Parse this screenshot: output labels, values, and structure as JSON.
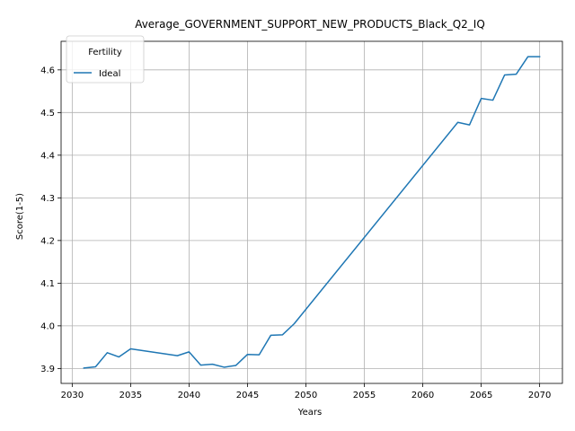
{
  "chart_data": {
    "type": "line",
    "title": "Average_GOVERNMENT_SUPPORT_NEW_PRODUCTS_Black_Q2_IQ",
    "xlabel": "Years",
    "ylabel": "Score(1-5)",
    "xlim": [
      2029.05,
      2071.95
    ],
    "ylim": [
      3.865,
      4.667
    ],
    "xticks": [
      2030,
      2035,
      2040,
      2045,
      2050,
      2055,
      2060,
      2065,
      2070
    ],
    "yticks": [
      3.9,
      4.0,
      4.1,
      4.2,
      4.3,
      4.4,
      4.5,
      4.6
    ],
    "grid": true,
    "legend": {
      "title": "Fertility",
      "placement": "top-left"
    },
    "series": [
      {
        "name": "Ideal",
        "color": "#1f77b4",
        "x": [
          2031,
          2032,
          2033,
          2034,
          2035,
          2039,
          2040,
          2041,
          2042,
          2043,
          2044,
          2045,
          2046,
          2047,
          2048,
          2049,
          2063,
          2064,
          2065,
          2066,
          2067,
          2068,
          2069,
          2070
        ],
        "y": [
          3.901,
          3.904,
          3.937,
          3.927,
          3.946,
          3.93,
          3.939,
          3.908,
          3.91,
          3.903,
          3.907,
          3.933,
          3.932,
          3.978,
          3.979,
          4.005,
          4.477,
          4.471,
          4.533,
          4.529,
          4.588,
          4.59,
          4.631,
          4.631
        ]
      }
    ]
  }
}
